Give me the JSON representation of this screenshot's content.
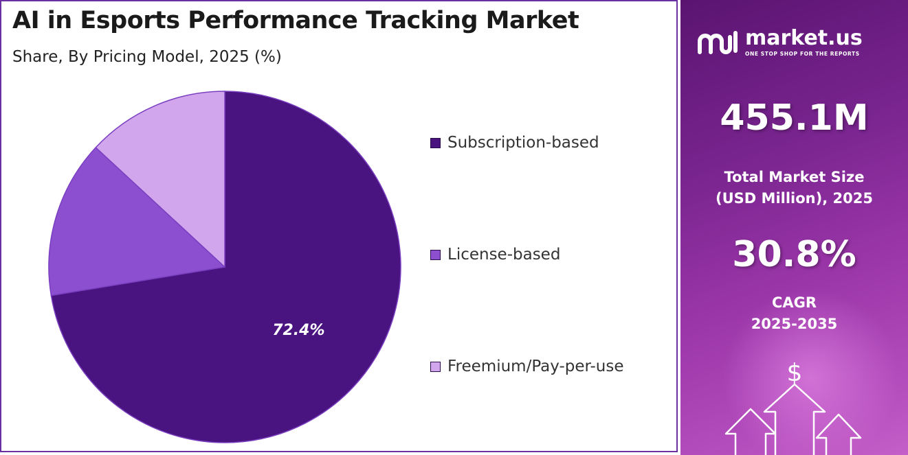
{
  "title": "AI in Esports Performance Tracking Market",
  "subtitle": "Share, By Pricing Model, 2025 (%)",
  "chart_data": {
    "type": "pie",
    "title": "AI in Esports Performance Tracking Market",
    "subtitle": "Share, By Pricing Model, 2025 (%)",
    "legend_position": "right",
    "slices": [
      {
        "label": "Subscription-based",
        "value": 72.4,
        "color": "#4a1480",
        "data_label": "72.4%"
      },
      {
        "label": "License-based",
        "value": 14.5,
        "color": "#8b4fd0"
      },
      {
        "label": "Freemium/Pay-per-use",
        "value": 13.1,
        "color": "#d1a6ec"
      }
    ]
  },
  "brand": {
    "name": "market.us",
    "tagline": "ONE STOP SHOP FOR THE REPORTS"
  },
  "stats": {
    "market_size_value": "455.1M",
    "market_size_label_line1": "Total Market Size",
    "market_size_label_line2": "(USD Million), 2025",
    "cagr_value": "30.8%",
    "cagr_label_line1": "CAGR",
    "cagr_label_line2": "2025-2035"
  },
  "icons": [
    "logo-icon",
    "dollar-icon",
    "arrow-up-icon"
  ],
  "colors": {
    "accent_dark": "#4a1480",
    "accent_mid": "#8b4fd0",
    "accent_light": "#d1a6ec",
    "panel_bg": "#7a2590"
  }
}
